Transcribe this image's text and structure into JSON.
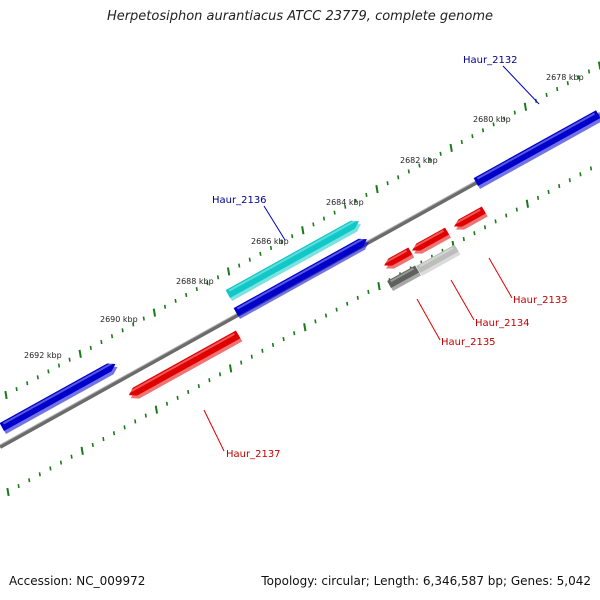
{
  "title": "Herpetosiphon aurantiacus ATCC 23779, complete genome",
  "footer": {
    "accession": "Accession: NC_009972",
    "summary": "Topology: circular; Length: 6,346,587 bp; Genes: 5,042"
  },
  "colors": {
    "forward_gene": "#0000cc",
    "forward_highlight": "#10c8c8",
    "reverse_gene": "#e00000",
    "pseudo_dark": "#606060",
    "pseudo_light": "#bdbdbd",
    "backbone": "#808080",
    "tick": "#1a7a1a",
    "label_forward": "#00008b",
    "label_reverse": "#c00000"
  },
  "scale_labels": [
    "2678 kbp",
    "2680 kbp",
    "2682 kbp",
    "2684 kbp",
    "2686 kbp",
    "2688 kbp",
    "2690 kbp",
    "2692 kbp"
  ],
  "gene_labels": {
    "g2132": "Haur_2132",
    "g2133": "Haur_2133",
    "g2134": "Haur_2134",
    "g2135": "Haur_2135",
    "g2136": "Haur_2136",
    "g2137": "Haur_2137"
  }
}
